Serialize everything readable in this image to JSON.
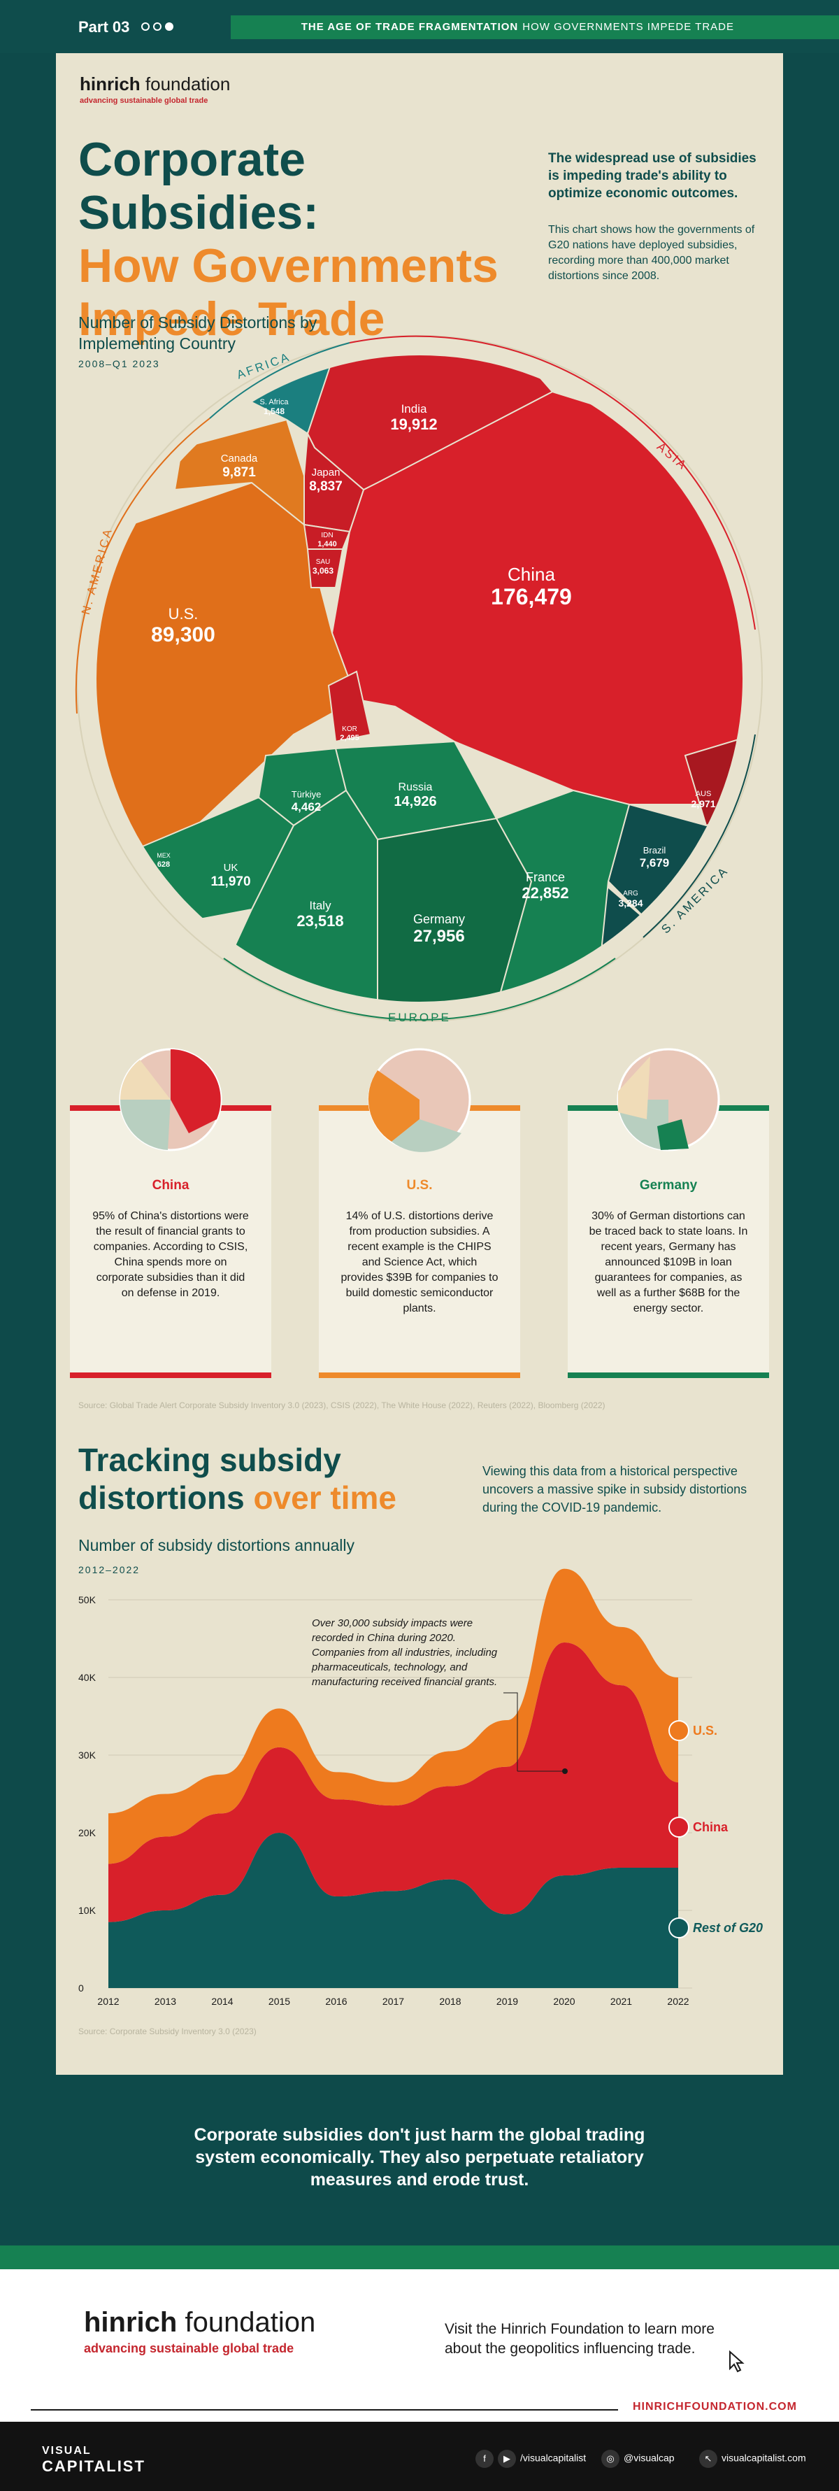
{
  "header": {
    "part": "Part 03",
    "series_bold": "THE AGE OF TRADE FRAGMENTATION",
    "series_rest": "HOW GOVERNMENTS IMPEDE TRADE"
  },
  "brand": {
    "logo_main": "hinrich",
    "logo_rest": " foundation",
    "tagline": "advancing sustainable global trade"
  },
  "title": {
    "line1": "Corporate Subsidies:",
    "line2": "How Governments",
    "line3": "Impede Trade"
  },
  "intro": {
    "bold": "The widespread use of subsidies is impeding trade's ability to optimize economic outcomes.",
    "text": "This chart shows how the governments of G20 nations have deployed subsidies, recording more than 400,000 market distortions since 2008."
  },
  "voronoi": {
    "title": "Number of Subsidy Distortions by Implementing Country",
    "subtitle": "2008–Q1 2023",
    "regions": [
      "AFRICA",
      "ASIA",
      "N. AMERICA",
      "S. AMERICA",
      "EUROPE"
    ]
  },
  "chart_data": [
    {
      "type": "voronoi-treemap",
      "title": "Number of Subsidy Distortions by Implementing Country",
      "period": "2008–Q1 2023",
      "cells": [
        {
          "country": "China",
          "value": 176479,
          "display": "176,479",
          "region": "ASIA"
        },
        {
          "country": "U.S.",
          "value": 89300,
          "display": "89,300",
          "region": "N. AMERICA"
        },
        {
          "country": "Germany",
          "value": 27956,
          "display": "27,956",
          "region": "EUROPE"
        },
        {
          "country": "Italy",
          "value": 23518,
          "display": "23,518",
          "region": "EUROPE"
        },
        {
          "country": "France",
          "value": 22852,
          "display": "22,852",
          "region": "EUROPE"
        },
        {
          "country": "India",
          "value": 19912,
          "display": "19,912",
          "region": "ASIA"
        },
        {
          "country": "Russia",
          "value": 14926,
          "display": "14,926",
          "region": "EUROPE"
        },
        {
          "country": "UK",
          "value": 11970,
          "display": "11,970",
          "region": "EUROPE"
        },
        {
          "country": "Canada",
          "value": 9871,
          "display": "9,871",
          "region": "N. AMERICA"
        },
        {
          "country": "Japan",
          "value": 8837,
          "display": "8,837",
          "region": "ASIA"
        },
        {
          "country": "Brazil",
          "value": 7679,
          "display": "7,679",
          "region": "S. AMERICA"
        },
        {
          "country": "Türkiye",
          "value": 4462,
          "display": "4,462",
          "region": "EUROPE"
        },
        {
          "country": "ARG",
          "value": 3284,
          "display": "3,284",
          "region": "S. AMERICA"
        },
        {
          "country": "SAU",
          "value": 3063,
          "display": "3,063",
          "region": "ASIA"
        },
        {
          "country": "AUS",
          "value": 2971,
          "display": "2,971",
          "region": "ASIA"
        },
        {
          "country": "KOR",
          "value": 2495,
          "display": "2,495",
          "region": "ASIA"
        },
        {
          "country": "S. Africa",
          "value": 1548,
          "display": "1,548",
          "region": "AFRICA"
        },
        {
          "country": "IDN",
          "value": 1440,
          "display": "1,440",
          "region": "ASIA"
        },
        {
          "country": "MEX",
          "value": 628,
          "display": "628",
          "region": "N. AMERICA"
        }
      ]
    },
    {
      "type": "area",
      "stacked": true,
      "title": "Number of subsidy distortions annually",
      "period": "2012–2022",
      "x": [
        "2012",
        "2013",
        "2014",
        "2015",
        "2016",
        "2017",
        "2018",
        "2019",
        "2020",
        "2021",
        "2022"
      ],
      "ylim": [
        0,
        50000
      ],
      "yticks": [
        "0",
        "10K",
        "20K",
        "30K",
        "40K",
        "50K"
      ],
      "series": [
        {
          "name": "Rest of G20",
          "values": [
            8500,
            10000,
            12000,
            20000,
            11800,
            12500,
            14000,
            9500,
            14500,
            15500,
            15500
          ]
        },
        {
          "name": "China",
          "values": [
            7500,
            9500,
            10500,
            11000,
            12500,
            11000,
            12000,
            19000,
            30000,
            23500,
            11000
          ]
        },
        {
          "name": "U.S.",
          "values": [
            6500,
            5500,
            5000,
            5000,
            3500,
            3000,
            4500,
            6000,
            9500,
            7500,
            13500
          ]
        }
      ],
      "annotation": "Over 30,000 subsidy impacts were recorded in China during 2020. Companies from all industries, including pharmaceuticals, technology, and manufacturing received financial grants."
    }
  ],
  "cards": [
    {
      "title": "China",
      "color": "#d8202a",
      "text": "95% of China's distortions were the result of financial grants to companies. According to CSIS, China spends more on corporate subsidies than it did on defense in 2019."
    },
    {
      "title": "U.S.",
      "color": "#ee8a2b",
      "text": "14% of U.S. distortions derive from production subsidies. A recent example is the CHIPS and Science Act, which provides $39B for companies to build domestic semiconductor plants."
    },
    {
      "title": "Germany",
      "color": "#168152",
      "text": "30% of German distortions can be traced back to state loans. In recent years, Germany has announced $109B in loan guarantees for companies, as well as a further $68B for the energy sector."
    }
  ],
  "source1": "Source: Global Trade Alert Corporate Subsidy Inventory 3.0 (2023), CSIS (2022), The White House (2022), Reuters (2022), Bloomberg (2022)",
  "tracking": {
    "title_a": "Tracking subsidy distortions ",
    "title_b": "over time",
    "intro": "Viewing this data from a historical perspective uncovers a massive spike in subsidy distortions during the COVID-19 pandemic.",
    "chart_title": "Number of subsidy distortions annually",
    "chart_sub": "2012–2022"
  },
  "source2": "Source: Corporate Subsidy Inventory 3.0 (2023)",
  "closing": "Corporate subsidies don't just harm the global trading system economically. They also perpetuate retaliatory measures and erode trust.",
  "footer": {
    "visit": "Visit the Hinrich Foundation to learn more about the geopolitics influencing trade.",
    "url": "HINRICHFOUNDATION.COM",
    "vc1": "VISUAL",
    "vc2": "CAPITALIST",
    "social1": "/visualcapitalist",
    "social2": "@visualcap",
    "social3": "visualcapitalist.com"
  },
  "colors": {
    "china": "#d8202a",
    "us": "#ee8a2b",
    "europe": "#168152",
    "teal": "#0f4d4c",
    "rest": "#0f5a5a"
  }
}
